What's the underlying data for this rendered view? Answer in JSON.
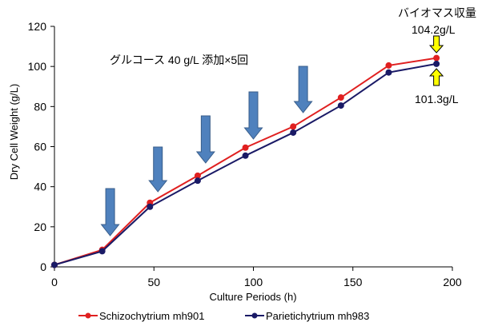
{
  "chart_data": {
    "type": "line",
    "title": "",
    "xlabel": "Culture Periods (h)",
    "ylabel": "Dry Cell Weight (g/L)",
    "xlim": [
      0,
      200
    ],
    "ylim": [
      0,
      120
    ],
    "xticks": [
      "0",
      "50",
      "100",
      "150",
      "200"
    ],
    "yticks": [
      "0",
      "20",
      "40",
      "60",
      "80",
      "100",
      "120"
    ],
    "grid": false,
    "series": [
      {
        "name": "Schizochytrium mh901",
        "color": "#e02020",
        "x": [
          0,
          24,
          48,
          72,
          96,
          120,
          144,
          168,
          192
        ],
        "y": [
          1.0,
          8.5,
          32.0,
          45.5,
          59.5,
          70.0,
          84.5,
          100.5,
          104.2
        ]
      },
      {
        "name": "Parietichytrium mh983",
        "color": "#1a1a66",
        "x": [
          0,
          24,
          48,
          72,
          96,
          120,
          144,
          168,
          192
        ],
        "y": [
          1.0,
          7.8,
          30.0,
          43.0,
          55.5,
          67.0,
          80.5,
          97.0,
          101.3
        ]
      }
    ],
    "feeding_times_h": [
      28,
      52,
      76,
      100,
      125
    ],
    "annotations": {
      "feed_note": "グルコース 40 g/L 添加×5回",
      "biomass_title": "バイオマス収量",
      "value_top": "104.2g/L",
      "value_bottom": "101.3g/L"
    },
    "legend_position": "bottom"
  }
}
